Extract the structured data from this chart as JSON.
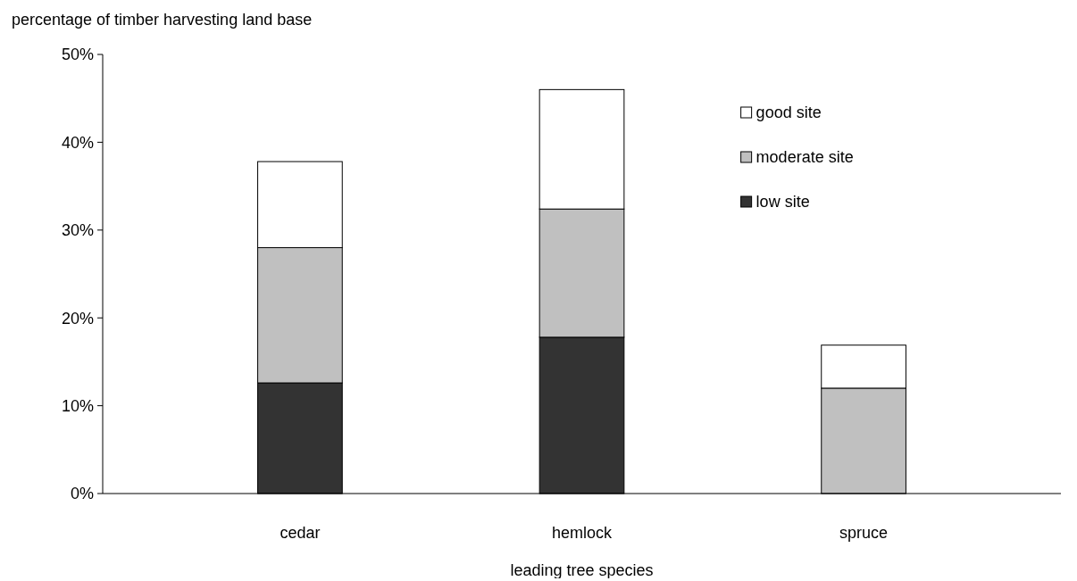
{
  "chart_data": {
    "type": "bar",
    "stacked": true,
    "ylabel": "percentage of timber harvesting land base",
    "xlabel": "leading tree species",
    "categories": [
      "cedar",
      "hemlock",
      "spruce"
    ],
    "series": [
      {
        "name": "low site",
        "color": "#333333",
        "values": [
          12.6,
          17.8,
          0
        ]
      },
      {
        "name": "moderate site",
        "color": "#c0c0c0",
        "values": [
          15.4,
          14.6,
          12.0
        ]
      },
      {
        "name": "good site",
        "color": "#ffffff",
        "values": [
          9.8,
          13.6,
          4.9
        ]
      }
    ],
    "ylim": [
      0,
      50
    ],
    "yticks": [
      {
        "value": 0,
        "label": "0%"
      },
      {
        "value": 10,
        "label": "10%"
      },
      {
        "value": 20,
        "label": "20%"
      },
      {
        "value": 30,
        "label": "30%"
      },
      {
        "value": 40,
        "label": "40%"
      },
      {
        "value": 50,
        "label": "50%"
      }
    ],
    "grid": false,
    "legend": "top right"
  }
}
